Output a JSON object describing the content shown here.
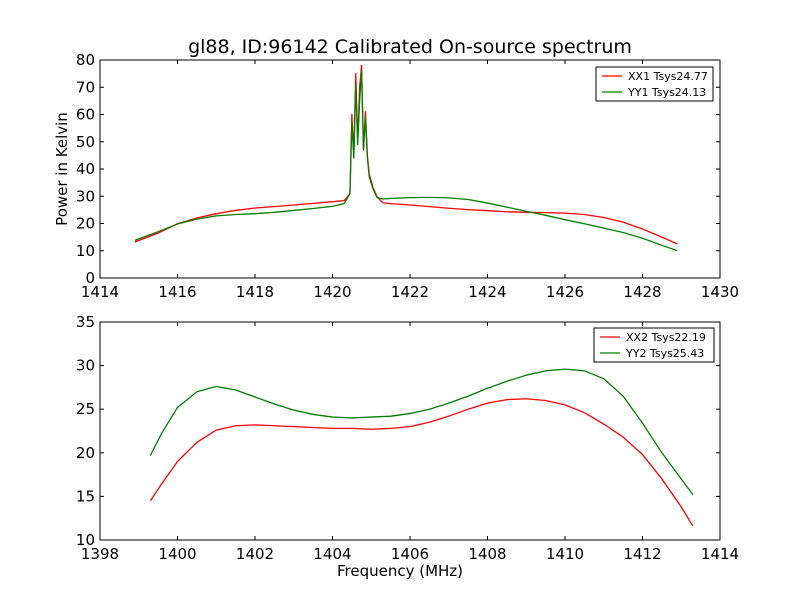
{
  "figure": {
    "title": "gl88, ID:96142 Calibrated On-source spectrum"
  },
  "chart_data": [
    {
      "type": "line",
      "title": "gl88, ID:96142 Calibrated On-source spectrum",
      "xlabel": "",
      "ylabel": "Power in Kelvin",
      "xlim": [
        1414,
        1430
      ],
      "ylim": [
        0,
        80
      ],
      "xticks": [
        1414,
        1416,
        1418,
        1420,
        1422,
        1424,
        1426,
        1428,
        1430
      ],
      "yticks": [
        0,
        10,
        20,
        30,
        40,
        50,
        60,
        70,
        80
      ],
      "grid": false,
      "legend": "top-right",
      "series": [
        {
          "name": "XX1 Tsys24.77",
          "color": "#ff0000",
          "x": [
            1414.9,
            1415.5,
            1416,
            1416.5,
            1417,
            1417.5,
            1418,
            1418.5,
            1419,
            1419.5,
            1420,
            1420.3,
            1420.45,
            1420.5,
            1420.55,
            1420.6,
            1420.65,
            1420.7,
            1420.75,
            1420.8,
            1420.85,
            1420.9,
            1420.95,
            1421.05,
            1421.15,
            1421.3,
            1421.5,
            1422,
            1422.5,
            1423,
            1423.5,
            1424,
            1424.5,
            1425,
            1425.5,
            1426,
            1426.5,
            1427,
            1427.5,
            1428,
            1428.5,
            1428.9
          ],
          "y": [
            13.2,
            16.5,
            19.9,
            22.0,
            23.6,
            24.8,
            25.7,
            26.2,
            26.8,
            27.4,
            28.0,
            28.4,
            31.0,
            60.0,
            45.0,
            75.0,
            50.0,
            70.0,
            78.0,
            47.0,
            61.0,
            45.0,
            38.0,
            33.0,
            29.8,
            27.6,
            27.3,
            26.8,
            26.2,
            25.6,
            25.1,
            24.7,
            24.3,
            24.1,
            24.0,
            23.8,
            23.3,
            22.2,
            20.5,
            18.0,
            15.0,
            12.5
          ]
        },
        {
          "name": "YY1 Tsys24.13",
          "color": "#008000",
          "x": [
            1414.9,
            1415.5,
            1416,
            1416.5,
            1417,
            1417.5,
            1418,
            1418.5,
            1419,
            1419.5,
            1420,
            1420.3,
            1420.45,
            1420.5,
            1420.55,
            1420.6,
            1420.65,
            1420.7,
            1420.75,
            1420.8,
            1420.85,
            1420.9,
            1420.95,
            1421.05,
            1421.15,
            1421.3,
            1421.5,
            1422,
            1422.5,
            1423,
            1423.5,
            1424,
            1424.5,
            1425,
            1425.5,
            1426,
            1426.5,
            1427,
            1427.5,
            1428,
            1428.5,
            1428.9
          ],
          "y": [
            13.8,
            17.0,
            19.8,
            21.6,
            22.8,
            23.3,
            23.6,
            24.1,
            24.8,
            25.5,
            26.3,
            27.3,
            31.0,
            57.0,
            44.0,
            71.0,
            49.0,
            65.0,
            76.0,
            47.0,
            59.0,
            44.0,
            37.0,
            32.5,
            29.5,
            29.0,
            29.2,
            29.5,
            29.6,
            29.4,
            28.8,
            27.5,
            26.0,
            24.5,
            23.0,
            21.4,
            19.9,
            18.3,
            16.7,
            14.6,
            12.0,
            10.0
          ]
        }
      ]
    },
    {
      "type": "line",
      "title": "",
      "xlabel": "Frequency (MHz)",
      "ylabel": "",
      "xlim": [
        1398,
        1414
      ],
      "ylim": [
        10,
        35
      ],
      "xticks": [
        1398,
        1400,
        1402,
        1404,
        1406,
        1408,
        1410,
        1412,
        1414
      ],
      "yticks": [
        10,
        15,
        20,
        25,
        30,
        35
      ],
      "grid": false,
      "legend": "top-right",
      "series": [
        {
          "name": "XX2 Tsys22.19",
          "color": "#ff0000",
          "x": [
            1399.3,
            1399.6,
            1400,
            1400.5,
            1401,
            1401.5,
            1402,
            1402.5,
            1403,
            1403.5,
            1404,
            1404.5,
            1405,
            1405.5,
            1406,
            1406.5,
            1407,
            1407.5,
            1408,
            1408.5,
            1409,
            1409.5,
            1410,
            1410.5,
            1411,
            1411.5,
            1412,
            1412.5,
            1413,
            1413.3
          ],
          "y": [
            14.5,
            16.5,
            19.0,
            21.2,
            22.6,
            23.1,
            23.2,
            23.1,
            23.0,
            22.9,
            22.8,
            22.8,
            22.7,
            22.8,
            23.0,
            23.5,
            24.2,
            25.0,
            25.7,
            26.1,
            26.2,
            26.0,
            25.5,
            24.6,
            23.3,
            21.8,
            19.8,
            17.0,
            13.8,
            11.6
          ]
        },
        {
          "name": "YY2 Tsys25.43",
          "color": "#008000",
          "x": [
            1399.3,
            1399.6,
            1400,
            1400.5,
            1401,
            1401.5,
            1402,
            1402.5,
            1403,
            1403.5,
            1404,
            1404.5,
            1405,
            1405.5,
            1406,
            1406.5,
            1407,
            1407.5,
            1408,
            1408.5,
            1409,
            1409.5,
            1410,
            1410.5,
            1411,
            1411.5,
            1412,
            1412.5,
            1413,
            1413.3
          ],
          "y": [
            19.7,
            22.3,
            25.2,
            27.0,
            27.6,
            27.2,
            26.4,
            25.6,
            24.9,
            24.4,
            24.1,
            24.0,
            24.1,
            24.2,
            24.5,
            25.0,
            25.7,
            26.5,
            27.4,
            28.2,
            28.9,
            29.4,
            29.6,
            29.4,
            28.5,
            26.5,
            23.4,
            20.0,
            17.0,
            15.2
          ]
        }
      ]
    }
  ]
}
